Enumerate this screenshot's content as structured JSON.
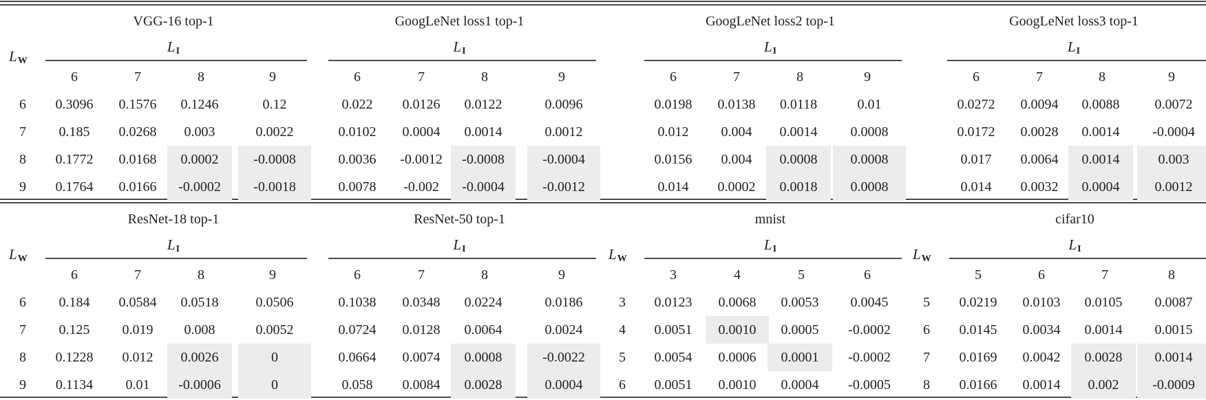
{
  "row_axis_label": "L",
  "row_axis_sub": "W",
  "col_axis_label": "L",
  "col_axis_sub": "I",
  "highlight_color": "#ececec",
  "tables": [
    {
      "title": "VGG-16 top-1",
      "col_headers": [
        "6",
        "7",
        "8",
        "9"
      ],
      "row_headers": [
        "6",
        "7",
        "8",
        "9"
      ],
      "rows": [
        [
          "0.3096",
          "0.1576",
          "0.1246",
          "0.12"
        ],
        [
          "0.185",
          "0.0268",
          "0.003",
          "0.0022"
        ],
        [
          "0.1772",
          "0.0168",
          "0.0002",
          "-0.0008"
        ],
        [
          "0.1764",
          "0.0166",
          "-0.0002",
          "-0.0018"
        ]
      ],
      "highlighted": [
        [
          2,
          2
        ],
        [
          2,
          3
        ],
        [
          3,
          2
        ],
        [
          3,
          3
        ]
      ]
    },
    {
      "title": "GoogLeNet loss1 top-1",
      "col_headers": [
        "6",
        "7",
        "8",
        "9"
      ],
      "row_headers": [
        "6",
        "7",
        "8",
        "9"
      ],
      "rows": [
        [
          "0.022",
          "0.0126",
          "0.0122",
          "0.0096"
        ],
        [
          "0.0102",
          "0.0004",
          "0.0014",
          "0.0012"
        ],
        [
          "0.0036",
          "-0.0012",
          "-0.0008",
          "-0.0004"
        ],
        [
          "0.0078",
          "-0.002",
          "-0.0004",
          "-0.0012"
        ]
      ],
      "highlighted": [
        [
          2,
          2
        ],
        [
          2,
          3
        ],
        [
          3,
          2
        ],
        [
          3,
          3
        ]
      ]
    },
    {
      "title": "GoogLeNet loss2 top-1",
      "col_headers": [
        "6",
        "7",
        "8",
        "9"
      ],
      "row_headers": [
        "6",
        "7",
        "8",
        "9"
      ],
      "rows": [
        [
          "0.0198",
          "0.0138",
          "0.0118",
          "0.01"
        ],
        [
          "0.012",
          "0.004",
          "0.0014",
          "0.0008"
        ],
        [
          "0.0156",
          "0.004",
          "0.0008",
          "0.0008"
        ],
        [
          "0.014",
          "0.0002",
          "0.0018",
          "0.0008"
        ]
      ],
      "highlighted": [
        [
          2,
          2
        ],
        [
          2,
          3
        ],
        [
          3,
          2
        ],
        [
          3,
          3
        ]
      ]
    },
    {
      "title": "GoogLeNet loss3 top-1",
      "col_headers": [
        "6",
        "7",
        "8",
        "9"
      ],
      "row_headers": [
        "6",
        "7",
        "8",
        "9"
      ],
      "rows": [
        [
          "0.0272",
          "0.0094",
          "0.0088",
          "0.0072"
        ],
        [
          "0.0172",
          "0.0028",
          "0.0014",
          "-0.0004"
        ],
        [
          "0.017",
          "0.0064",
          "0.0014",
          "0.003"
        ],
        [
          "0.014",
          "0.0032",
          "0.0004",
          "0.0012"
        ]
      ],
      "highlighted": [
        [
          2,
          2
        ],
        [
          2,
          3
        ],
        [
          3,
          2
        ],
        [
          3,
          3
        ]
      ]
    },
    {
      "title": "ResNet-18 top-1",
      "col_headers": [
        "6",
        "7",
        "8",
        "9"
      ],
      "row_headers": [
        "6",
        "7",
        "8",
        "9"
      ],
      "rows": [
        [
          "0.184",
          "0.0584",
          "0.0518",
          "0.0506"
        ],
        [
          "0.125",
          "0.019",
          "0.008",
          "0.0052"
        ],
        [
          "0.1228",
          "0.012",
          "0.0026",
          "0"
        ],
        [
          "0.1134",
          "0.01",
          "-0.0006",
          "0"
        ]
      ],
      "highlighted": [
        [
          2,
          2
        ],
        [
          2,
          3
        ],
        [
          3,
          2
        ],
        [
          3,
          3
        ]
      ]
    },
    {
      "title": "ResNet-50 top-1",
      "col_headers": [
        "6",
        "7",
        "8",
        "9"
      ],
      "row_headers": [
        "6",
        "7",
        "8",
        "9"
      ],
      "rows": [
        [
          "0.1038",
          "0.0348",
          "0.0224",
          "0.0186"
        ],
        [
          "0.0724",
          "0.0128",
          "0.0064",
          "0.0024"
        ],
        [
          "0.0664",
          "0.0074",
          "0.0008",
          "-0.0022"
        ],
        [
          "0.058",
          "0.0084",
          "0.0028",
          "0.0004"
        ]
      ],
      "highlighted": [
        [
          2,
          2
        ],
        [
          2,
          3
        ],
        [
          3,
          2
        ],
        [
          3,
          3
        ]
      ]
    },
    {
      "title": "mnist",
      "col_headers": [
        "3",
        "4",
        "5",
        "6"
      ],
      "row_headers": [
        "3",
        "4",
        "5",
        "6"
      ],
      "rows": [
        [
          "0.0123",
          "0.0068",
          "0.0053",
          "0.0045"
        ],
        [
          "0.0051",
          "0.0010",
          "0.0005",
          "-0.0002"
        ],
        [
          "0.0054",
          "0.0006",
          "0.0001",
          "-0.0002"
        ],
        [
          "0.0051",
          "0.0010",
          "0.0004",
          "-0.0005"
        ]
      ],
      "highlighted": [
        [
          1,
          1
        ],
        [
          2,
          2
        ]
      ]
    },
    {
      "title": "cifar10",
      "col_headers": [
        "5",
        "6",
        "7",
        "8"
      ],
      "row_headers": [
        "5",
        "6",
        "7",
        "8"
      ],
      "rows": [
        [
          "0.0219",
          "0.0103",
          "0.0105",
          "0.0087"
        ],
        [
          "0.0145",
          "0.0034",
          "0.0014",
          "0.0015"
        ],
        [
          "0.0169",
          "0.0042",
          "0.0028",
          "0.0014"
        ],
        [
          "0.0166",
          "0.0014",
          "0.002",
          "-0.0009"
        ]
      ],
      "highlighted": [
        [
          2,
          2
        ],
        [
          2,
          3
        ],
        [
          3,
          2
        ],
        [
          3,
          3
        ]
      ]
    }
  ]
}
